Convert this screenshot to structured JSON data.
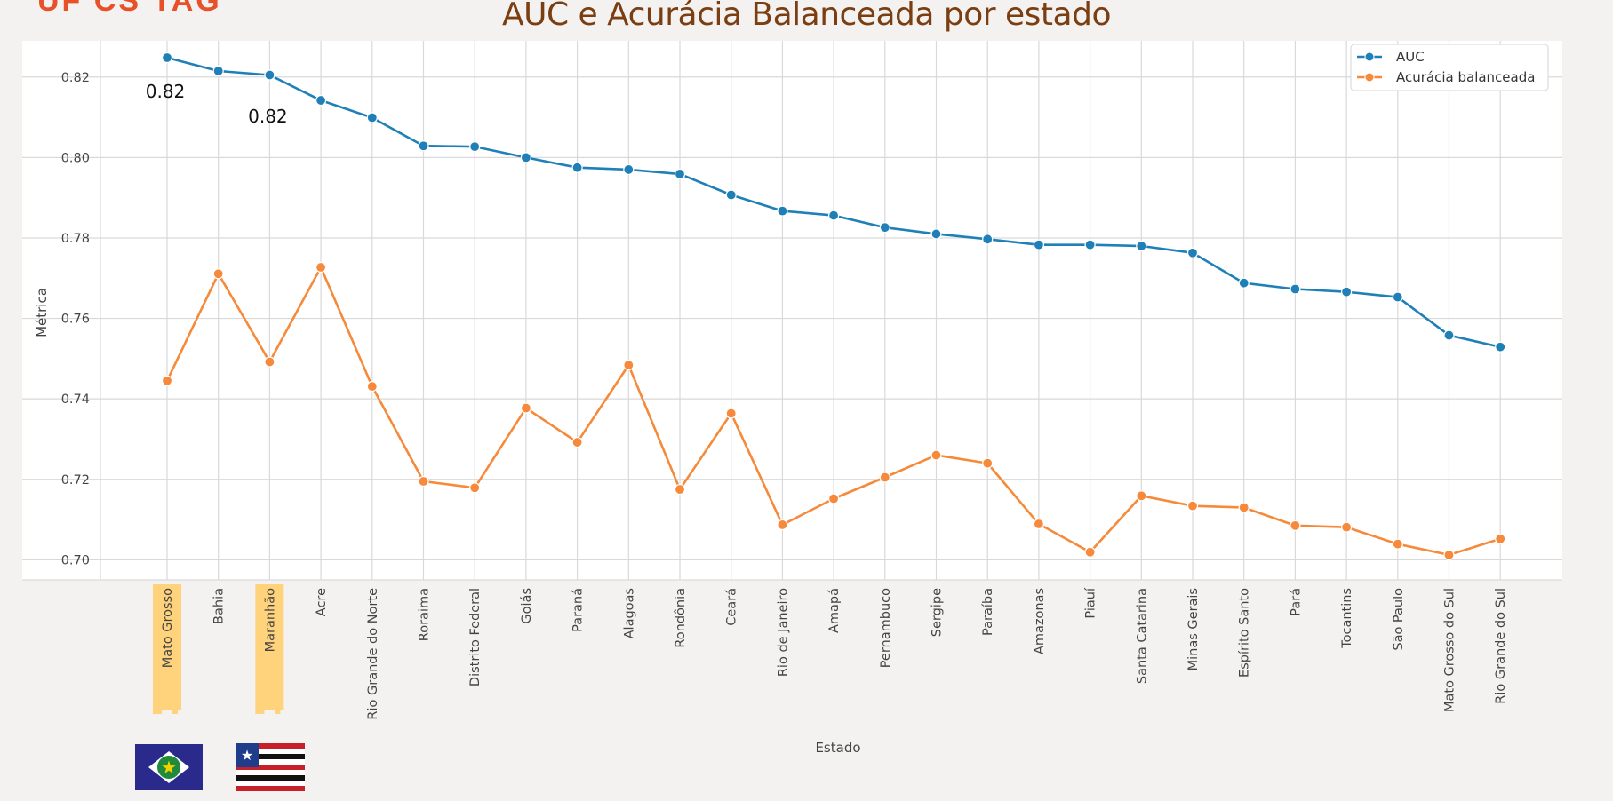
{
  "corner_text": "UF CS TAG",
  "colors": {
    "title": "#7a3e12",
    "corner_text": "#e8502a",
    "auc": "#1f80b8",
    "bal_acc": "#f6893a",
    "highlight": "#ffd27c",
    "grid": "#d9d9d9",
    "axes_bg": "#ffffff",
    "tick_text": "#444444"
  },
  "chart_data": {
    "type": "line",
    "title": "AUC e Acurácia Balanceada por estado",
    "xlabel": "Estado",
    "ylabel": "Métrica",
    "ylim": [
      0.695,
      0.829
    ],
    "yticks": [
      0.7,
      0.72,
      0.74,
      0.76,
      0.78,
      0.8,
      0.82
    ],
    "ytick_labels": [
      "0.70",
      "0.72",
      "0.74",
      "0.76",
      "0.78",
      "0.80",
      "0.82"
    ],
    "grid": true,
    "legend_position": "top-right",
    "categories": [
      "Mato Grosso",
      "Bahia",
      "Maranhão",
      "Acre",
      "Rio Grande do Norte",
      "Roraima",
      "Distrito Federal",
      "Goiás",
      "Paraná",
      "Alagoas",
      "Rondônia",
      "Ceará",
      "Rio de Janeiro",
      "Amapá",
      "Pernambuco",
      "Sergipe",
      "Paraíba",
      "Amazonas",
      "Piauí",
      "Santa Catarina",
      "Minas Gerais",
      "Espírito Santo",
      "Pará",
      "Tocantins",
      "São Paulo",
      "Mato Grosso do Sul",
      "Rio Grande do Sul"
    ],
    "series": [
      {
        "name": "AUC",
        "values": [
          0.8248,
          0.8215,
          0.8205,
          0.8142,
          0.8099,
          0.8029,
          0.8027,
          0.8,
          0.7975,
          0.797,
          0.7959,
          0.7907,
          0.7867,
          0.7856,
          0.7826,
          0.781,
          0.7797,
          0.7783,
          0.7783,
          0.778,
          0.7763,
          0.7688,
          0.7673,
          0.7666,
          0.7653,
          0.7558,
          0.7529
        ]
      },
      {
        "name": "Acurácia balanceada",
        "values": [
          0.7445,
          0.7711,
          0.7492,
          0.7727,
          0.7431,
          0.7195,
          0.7179,
          0.7377,
          0.7292,
          0.7484,
          0.7175,
          0.7364,
          0.7087,
          0.7152,
          0.7205,
          0.726,
          0.724,
          0.7089,
          0.7019,
          0.7159,
          0.7134,
          0.713,
          0.7085,
          0.7081,
          0.7039,
          0.7012,
          0.7052
        ]
      }
    ],
    "annotations": [
      {
        "text": "0.82",
        "category": "Mato Grosso"
      },
      {
        "text": "0.82",
        "category": "Maranhão"
      }
    ],
    "highlighted_categories": [
      "Mato Grosso",
      "Maranhão"
    ]
  }
}
